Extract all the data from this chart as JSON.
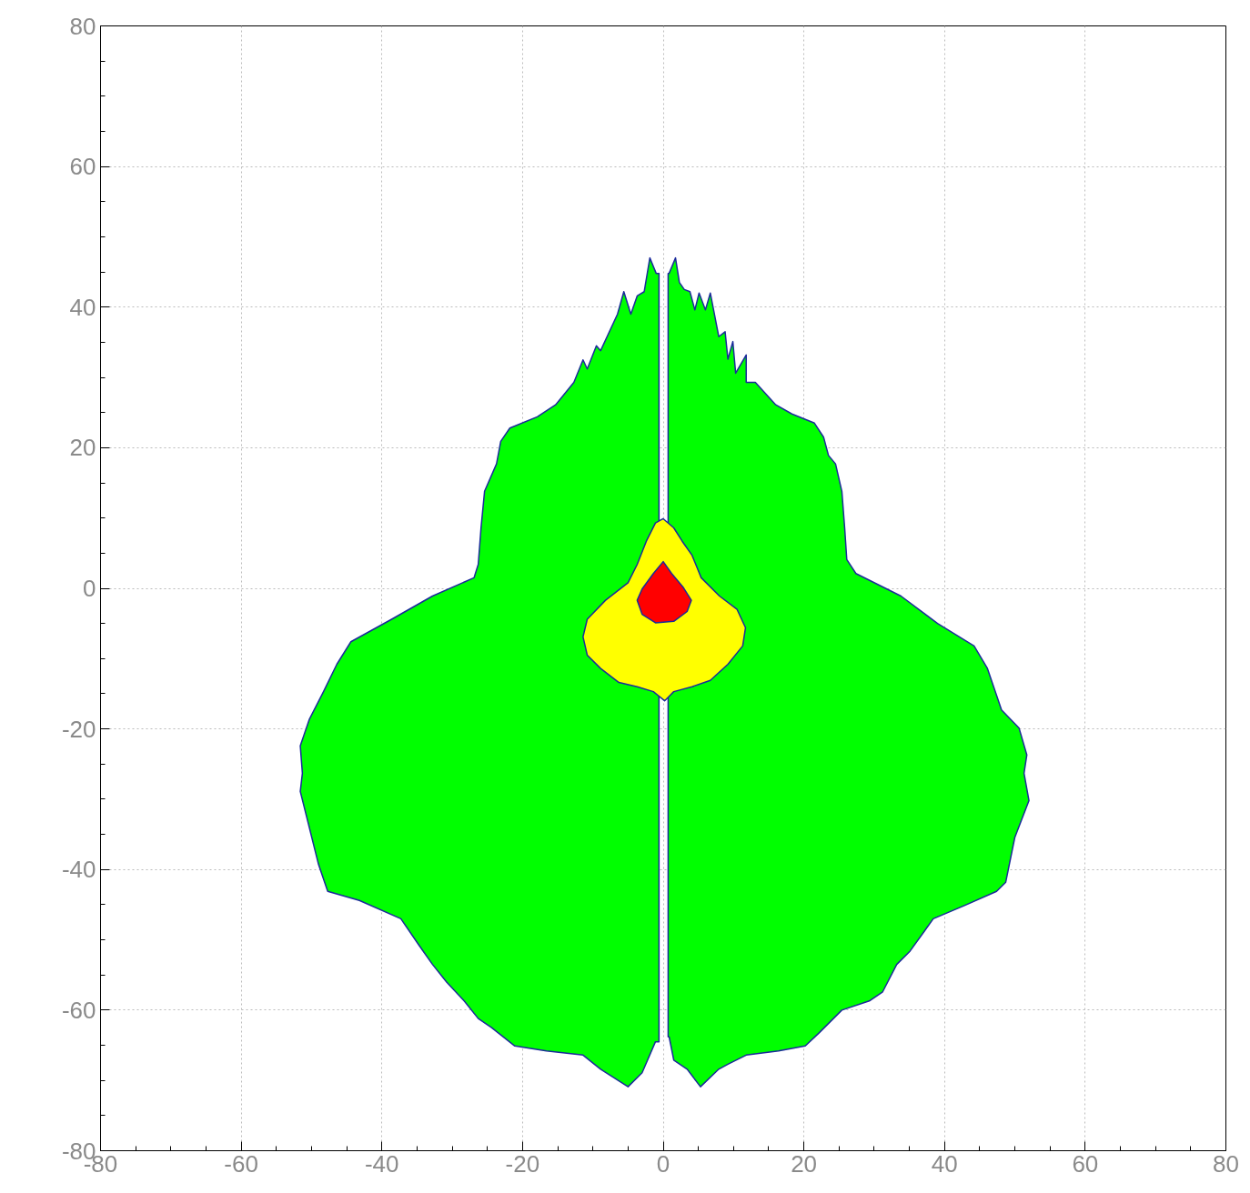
{
  "chart_data": {
    "type": "area",
    "xlim": [
      -80,
      80
    ],
    "ylim": [
      -80,
      80
    ],
    "xticks": [
      -80,
      -60,
      -40,
      -20,
      0,
      20,
      40,
      60,
      80
    ],
    "yticks": [
      -80,
      -60,
      -40,
      -20,
      0,
      20,
      40,
      60,
      80
    ],
    "grid": true,
    "series": [
      {
        "color": "#00ff00",
        "x": [
          -0.6,
          -1.0,
          -1.9,
          -2.7,
          -3.7,
          -4.6,
          -5.6,
          -6.5,
          -8.9,
          -9.5,
          -10.8,
          -11.4,
          -12.7,
          -15.3,
          -17.9,
          -21.8,
          -23.1,
          -23.7,
          -25.4,
          -25.9,
          -26.3,
          -26.9,
          -32.8,
          -38.6,
          -44.4,
          -46.4,
          -48.3,
          -50.3,
          -51.6,
          -51.3,
          -51.6,
          -50.3,
          -49.0,
          -47.7,
          -43.2,
          -37.3,
          -34.7,
          -32.8,
          -30.8,
          -28.3,
          -26.3,
          -24.4,
          -21.1,
          -16.6,
          -11.4,
          -8.9,
          -5.0,
          -3.0,
          -1.1,
          -0.6
        ],
        "values": [
          44.8,
          44.8,
          47.0,
          42.2,
          41.6,
          39.0,
          42.2,
          39.0,
          33.8,
          34.5,
          31.2,
          32.5,
          29.3,
          26.1,
          24.4,
          22.8,
          20.9,
          17.7,
          13.8,
          8.6,
          3.4,
          1.5,
          -1.1,
          -4.4,
          -7.6,
          -10.8,
          -14.7,
          -18.6,
          -22.4,
          -26.3,
          -28.9,
          -34.1,
          -39.3,
          -43.1,
          -44.4,
          -47.0,
          -50.8,
          -53.5,
          -56.0,
          -58.7,
          -61.2,
          -62.5,
          -65.1,
          -65.8,
          -66.4,
          -68.4,
          -70.9,
          -68.9,
          -64.5,
          -64.5
        ]
      },
      {
        "color": "#00ff00",
        "x": [
          0.7,
          0.84,
          1.75,
          2.3,
          3.0,
          3.8,
          4.5,
          5.1,
          6.0,
          6.7,
          7.9,
          8.8,
          9.2,
          9.9,
          10.3,
          11.8,
          11.8,
          13.1,
          16.0,
          18.3,
          21.5,
          22.8,
          23.5,
          24.5,
          25.4,
          25.8,
          26.1,
          27.4,
          33.8,
          39.0,
          44.2,
          46.1,
          48.1,
          50.6,
          51.7,
          51.3,
          52.0,
          50.0,
          48.7,
          47.4,
          42.9,
          38.4,
          35.1,
          33.2,
          31.2,
          29.3,
          25.4,
          22.2,
          20.2,
          16.4,
          11.8,
          9.2,
          7.9,
          5.3,
          3.4,
          1.5,
          0.84,
          0.7
        ],
        "values": [
          44.8,
          44.8,
          47.0,
          43.5,
          42.5,
          42.2,
          39.6,
          42.0,
          39.6,
          42.0,
          35.8,
          36.5,
          32.6,
          35.1,
          30.6,
          33.2,
          29.3,
          29.3,
          26.1,
          24.8,
          23.5,
          21.5,
          18.9,
          17.7,
          13.8,
          8.6,
          4.1,
          2.1,
          -1.1,
          -5.0,
          -8.2,
          -11.4,
          -17.3,
          -19.9,
          -23.7,
          -26.3,
          -30.2,
          -35.4,
          -41.8,
          -43.1,
          -45.1,
          -47.0,
          -51.6,
          -53.5,
          -57.4,
          -58.7,
          -60.0,
          -63.2,
          -65.1,
          -65.8,
          -66.4,
          -67.7,
          -68.4,
          -70.9,
          -68.4,
          -67.1,
          -63.8,
          -63.8
        ]
      },
      {
        "color": "#ffff00",
        "x": [
          0,
          1.5,
          2.7,
          4.1,
          5.4,
          8.0,
          10.5,
          11.7,
          11.3,
          9.2,
          6.7,
          4.1,
          1.5,
          0.2,
          -1.4,
          -3.7,
          -6.3,
          -8.9,
          -10.8,
          -11.4,
          -10.8,
          -8.2,
          -5.0,
          -3.7,
          -2.4,
          -1.1
        ],
        "values": [
          9.9,
          8.6,
          6.7,
          4.7,
          1.5,
          -1.1,
          -3.0,
          -5.6,
          -8.2,
          -10.8,
          -13.1,
          -14.0,
          -14.7,
          -16.0,
          -14.7,
          -14.0,
          -13.4,
          -11.4,
          -9.5,
          -6.9,
          -4.4,
          -1.7,
          0.8,
          3.4,
          6.7,
          9.3
        ]
      },
      {
        "color": "#ff0000",
        "x": [
          0,
          1.2,
          2.8,
          4.0,
          3.4,
          1.5,
          -1.1,
          -3.0,
          -3.7,
          -3.0,
          -1.4
        ],
        "values": [
          3.8,
          2.1,
          0.2,
          -1.7,
          -3.3,
          -4.7,
          -4.9,
          -3.7,
          -1.7,
          -0.1,
          2.1
        ]
      }
    ]
  }
}
